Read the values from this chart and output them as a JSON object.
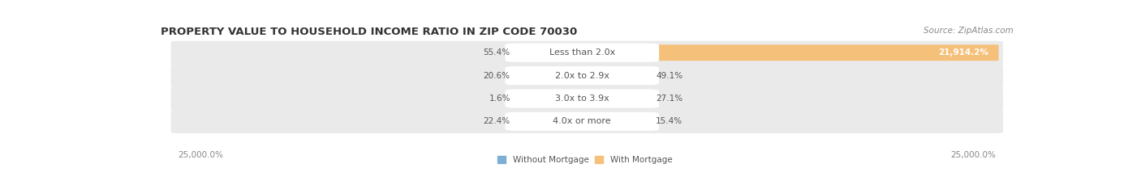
{
  "title": "PROPERTY VALUE TO HOUSEHOLD INCOME RATIO IN ZIP CODE 70030",
  "source": "Source: ZipAtlas.com",
  "categories": [
    "Less than 2.0x",
    "2.0x to 2.9x",
    "3.0x to 3.9x",
    "4.0x or more"
  ],
  "without_mortgage": [
    55.4,
    20.6,
    1.6,
    22.4
  ],
  "with_mortgage": [
    21914.2,
    49.1,
    27.1,
    15.4
  ],
  "without_mortgage_color": "#7BAFD4",
  "with_mortgage_color": "#F5C07A",
  "row_bg_color": "#EAEAEA",
  "pill_color": "#FFFFFF",
  "max_value": 25000.0,
  "xlabel_left": "25,000.0%",
  "xlabel_right": "25,000.0%",
  "legend_without": "Without Mortgage",
  "legend_with": "With Mortgage",
  "title_fontsize": 9.5,
  "label_fontsize": 7.5,
  "source_fontsize": 7.5,
  "cat_fontsize": 8.0
}
